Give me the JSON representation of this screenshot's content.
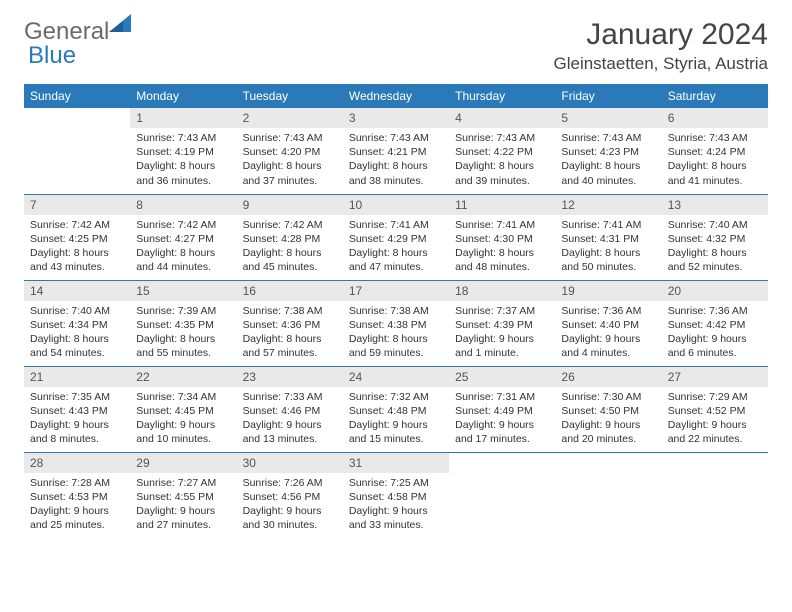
{
  "brand": {
    "part1": "General",
    "part2": "Blue"
  },
  "title": "January 2024",
  "location": "Gleinstaetten, Styria, Austria",
  "colors": {
    "header_bg": "#2a7ab9",
    "header_text": "#ffffff",
    "daynum_bg": "#e9e9e9",
    "row_border": "#2a7ab9",
    "body_text": "#333333",
    "logo_gray": "#6a6a6a",
    "logo_blue": "#2a7ab9"
  },
  "daysOfWeek": [
    "Sunday",
    "Monday",
    "Tuesday",
    "Wednesday",
    "Thursday",
    "Friday",
    "Saturday"
  ],
  "weeks": [
    [
      {
        "n": "",
        "sunrise": "",
        "sunset": "",
        "daylight": ""
      },
      {
        "n": "1",
        "sunrise": "Sunrise: 7:43 AM",
        "sunset": "Sunset: 4:19 PM",
        "daylight": "Daylight: 8 hours and 36 minutes."
      },
      {
        "n": "2",
        "sunrise": "Sunrise: 7:43 AM",
        "sunset": "Sunset: 4:20 PM",
        "daylight": "Daylight: 8 hours and 37 minutes."
      },
      {
        "n": "3",
        "sunrise": "Sunrise: 7:43 AM",
        "sunset": "Sunset: 4:21 PM",
        "daylight": "Daylight: 8 hours and 38 minutes."
      },
      {
        "n": "4",
        "sunrise": "Sunrise: 7:43 AM",
        "sunset": "Sunset: 4:22 PM",
        "daylight": "Daylight: 8 hours and 39 minutes."
      },
      {
        "n": "5",
        "sunrise": "Sunrise: 7:43 AM",
        "sunset": "Sunset: 4:23 PM",
        "daylight": "Daylight: 8 hours and 40 minutes."
      },
      {
        "n": "6",
        "sunrise": "Sunrise: 7:43 AM",
        "sunset": "Sunset: 4:24 PM",
        "daylight": "Daylight: 8 hours and 41 minutes."
      }
    ],
    [
      {
        "n": "7",
        "sunrise": "Sunrise: 7:42 AM",
        "sunset": "Sunset: 4:25 PM",
        "daylight": "Daylight: 8 hours and 43 minutes."
      },
      {
        "n": "8",
        "sunrise": "Sunrise: 7:42 AM",
        "sunset": "Sunset: 4:27 PM",
        "daylight": "Daylight: 8 hours and 44 minutes."
      },
      {
        "n": "9",
        "sunrise": "Sunrise: 7:42 AM",
        "sunset": "Sunset: 4:28 PM",
        "daylight": "Daylight: 8 hours and 45 minutes."
      },
      {
        "n": "10",
        "sunrise": "Sunrise: 7:41 AM",
        "sunset": "Sunset: 4:29 PM",
        "daylight": "Daylight: 8 hours and 47 minutes."
      },
      {
        "n": "11",
        "sunrise": "Sunrise: 7:41 AM",
        "sunset": "Sunset: 4:30 PM",
        "daylight": "Daylight: 8 hours and 48 minutes."
      },
      {
        "n": "12",
        "sunrise": "Sunrise: 7:41 AM",
        "sunset": "Sunset: 4:31 PM",
        "daylight": "Daylight: 8 hours and 50 minutes."
      },
      {
        "n": "13",
        "sunrise": "Sunrise: 7:40 AM",
        "sunset": "Sunset: 4:32 PM",
        "daylight": "Daylight: 8 hours and 52 minutes."
      }
    ],
    [
      {
        "n": "14",
        "sunrise": "Sunrise: 7:40 AM",
        "sunset": "Sunset: 4:34 PM",
        "daylight": "Daylight: 8 hours and 54 minutes."
      },
      {
        "n": "15",
        "sunrise": "Sunrise: 7:39 AM",
        "sunset": "Sunset: 4:35 PM",
        "daylight": "Daylight: 8 hours and 55 minutes."
      },
      {
        "n": "16",
        "sunrise": "Sunrise: 7:38 AM",
        "sunset": "Sunset: 4:36 PM",
        "daylight": "Daylight: 8 hours and 57 minutes."
      },
      {
        "n": "17",
        "sunrise": "Sunrise: 7:38 AM",
        "sunset": "Sunset: 4:38 PM",
        "daylight": "Daylight: 8 hours and 59 minutes."
      },
      {
        "n": "18",
        "sunrise": "Sunrise: 7:37 AM",
        "sunset": "Sunset: 4:39 PM",
        "daylight": "Daylight: 9 hours and 1 minute."
      },
      {
        "n": "19",
        "sunrise": "Sunrise: 7:36 AM",
        "sunset": "Sunset: 4:40 PM",
        "daylight": "Daylight: 9 hours and 4 minutes."
      },
      {
        "n": "20",
        "sunrise": "Sunrise: 7:36 AM",
        "sunset": "Sunset: 4:42 PM",
        "daylight": "Daylight: 9 hours and 6 minutes."
      }
    ],
    [
      {
        "n": "21",
        "sunrise": "Sunrise: 7:35 AM",
        "sunset": "Sunset: 4:43 PM",
        "daylight": "Daylight: 9 hours and 8 minutes."
      },
      {
        "n": "22",
        "sunrise": "Sunrise: 7:34 AM",
        "sunset": "Sunset: 4:45 PM",
        "daylight": "Daylight: 9 hours and 10 minutes."
      },
      {
        "n": "23",
        "sunrise": "Sunrise: 7:33 AM",
        "sunset": "Sunset: 4:46 PM",
        "daylight": "Daylight: 9 hours and 13 minutes."
      },
      {
        "n": "24",
        "sunrise": "Sunrise: 7:32 AM",
        "sunset": "Sunset: 4:48 PM",
        "daylight": "Daylight: 9 hours and 15 minutes."
      },
      {
        "n": "25",
        "sunrise": "Sunrise: 7:31 AM",
        "sunset": "Sunset: 4:49 PM",
        "daylight": "Daylight: 9 hours and 17 minutes."
      },
      {
        "n": "26",
        "sunrise": "Sunrise: 7:30 AM",
        "sunset": "Sunset: 4:50 PM",
        "daylight": "Daylight: 9 hours and 20 minutes."
      },
      {
        "n": "27",
        "sunrise": "Sunrise: 7:29 AM",
        "sunset": "Sunset: 4:52 PM",
        "daylight": "Daylight: 9 hours and 22 minutes."
      }
    ],
    [
      {
        "n": "28",
        "sunrise": "Sunrise: 7:28 AM",
        "sunset": "Sunset: 4:53 PM",
        "daylight": "Daylight: 9 hours and 25 minutes."
      },
      {
        "n": "29",
        "sunrise": "Sunrise: 7:27 AM",
        "sunset": "Sunset: 4:55 PM",
        "daylight": "Daylight: 9 hours and 27 minutes."
      },
      {
        "n": "30",
        "sunrise": "Sunrise: 7:26 AM",
        "sunset": "Sunset: 4:56 PM",
        "daylight": "Daylight: 9 hours and 30 minutes."
      },
      {
        "n": "31",
        "sunrise": "Sunrise: 7:25 AM",
        "sunset": "Sunset: 4:58 PM",
        "daylight": "Daylight: 9 hours and 33 minutes."
      },
      {
        "n": "",
        "sunrise": "",
        "sunset": "",
        "daylight": ""
      },
      {
        "n": "",
        "sunrise": "",
        "sunset": "",
        "daylight": ""
      },
      {
        "n": "",
        "sunrise": "",
        "sunset": "",
        "daylight": ""
      }
    ]
  ]
}
